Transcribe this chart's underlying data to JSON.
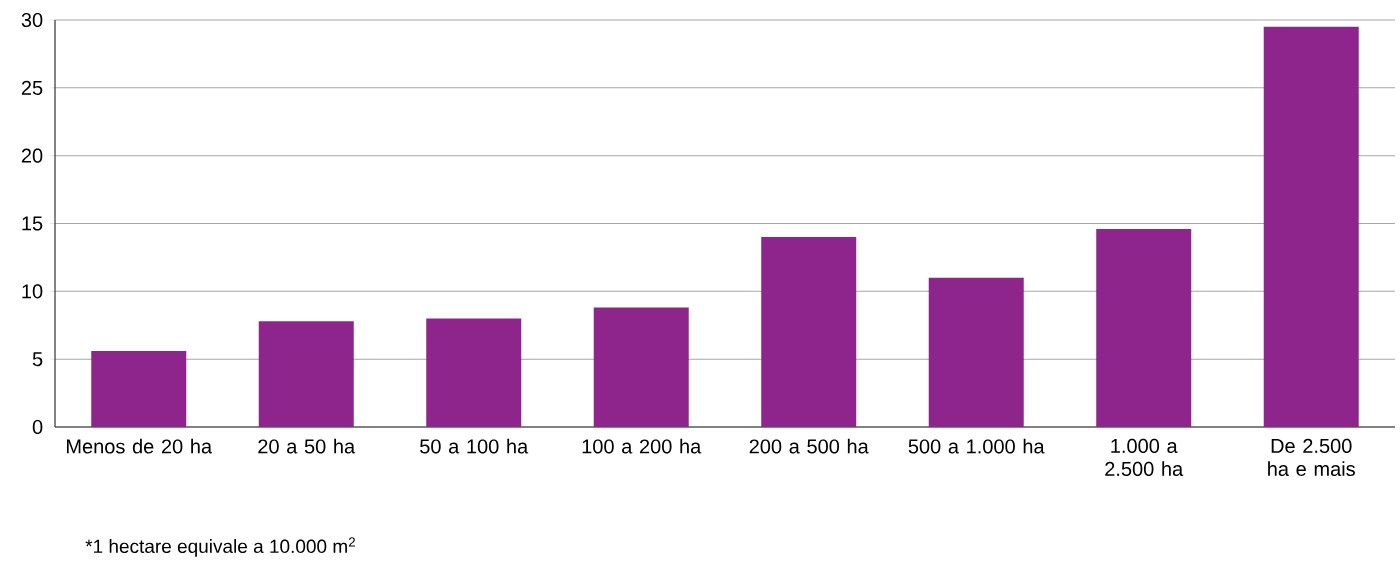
{
  "chart_data": {
    "type": "bar",
    "categories": [
      "Menos de 20 ha",
      "20 a 50 ha",
      "50 a 100 ha",
      "100 a 200 ha",
      "200 a 500 ha",
      "500 a 1.000 ha",
      "1.000 a 2.500 ha",
      "De 2.500 ha e mais"
    ],
    "values": [
      5.6,
      7.8,
      8.0,
      8.8,
      14.0,
      11.0,
      14.6,
      29.5
    ],
    "color": "#8e258c",
    "ylim": [
      0,
      30
    ],
    "yticks": [
      0,
      5,
      10,
      15,
      20,
      25,
      30
    ],
    "grid": "y",
    "annotations": [
      "*1 hectare equivale a 10.000 m$^{2}$"
    ]
  }
}
